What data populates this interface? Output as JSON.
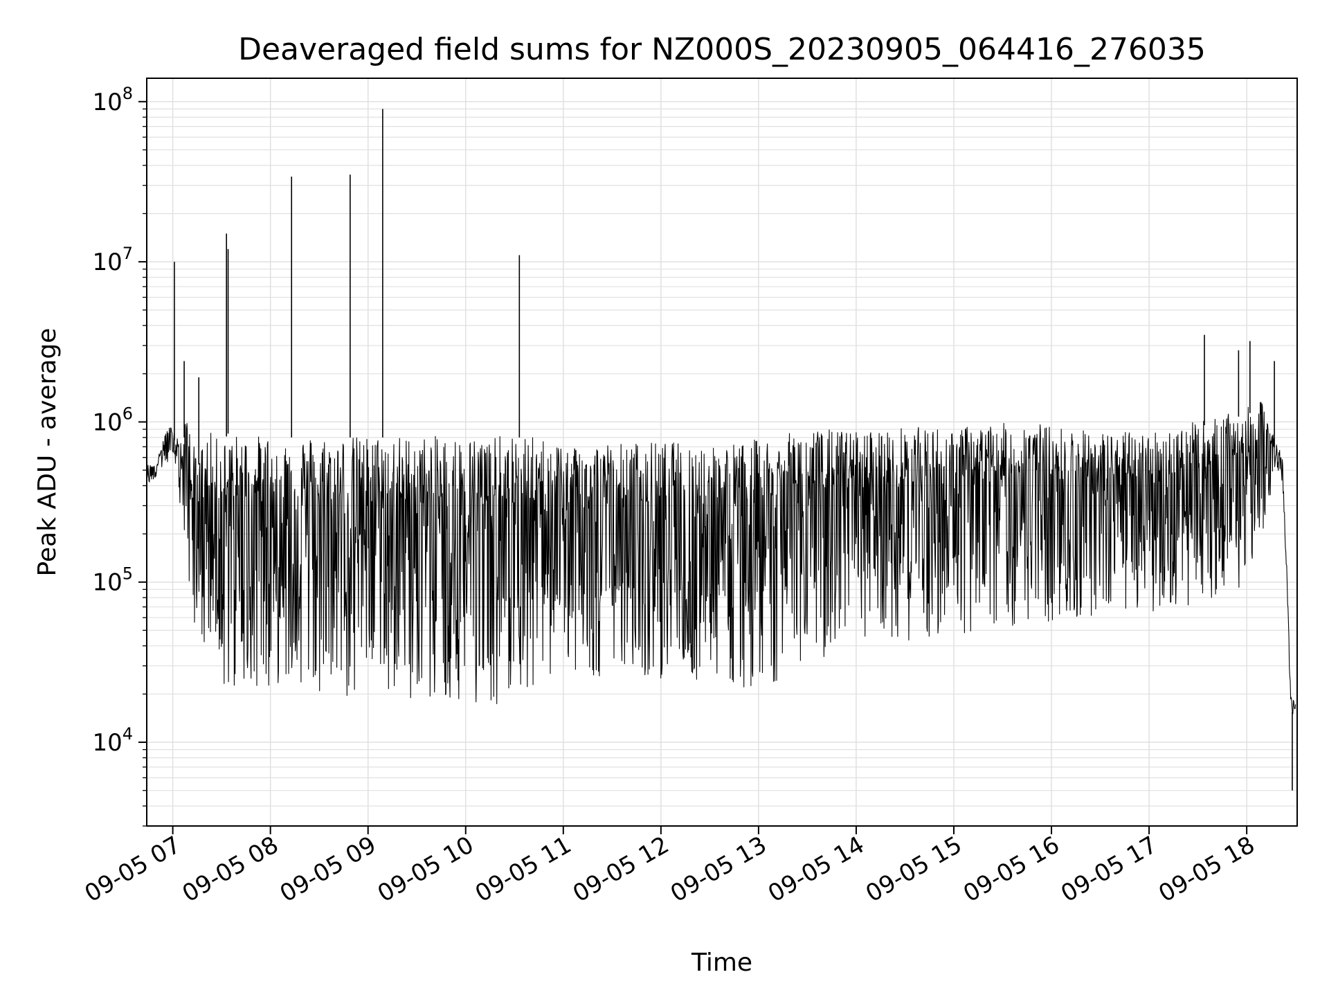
{
  "chart_data": {
    "type": "line",
    "title": "Deaveraged field sums for NZ000S_20230905_064416_276035",
    "xlabel": "Time",
    "ylabel": "Peak ADU - average",
    "yscale": "log",
    "ylim": [
      3000,
      140000000
    ],
    "xlim": [
      "2023-09-05 06:44",
      "2023-09-05 18:31"
    ],
    "grid": true,
    "line_color": "#000000",
    "grid_color": "#e0e0e0",
    "x_ticks": [
      "2023-09-05 07:00",
      "2023-09-05 08:00",
      "2023-09-05 09:00",
      "2023-09-05 10:00",
      "2023-09-05 11:00",
      "2023-09-05 12:00",
      "2023-09-05 13:00",
      "2023-09-05 14:00",
      "2023-09-05 15:00",
      "2023-09-05 16:00",
      "2023-09-05 17:00",
      "2023-09-05 18:00"
    ],
    "x_tick_labels": [
      "09-05 07",
      "09-05 08",
      "09-05 09",
      "09-05 10",
      "09-05 11",
      "09-05 12",
      "09-05 13",
      "09-05 14",
      "09-05 15",
      "09-05 16",
      "09-05 17",
      "09-05 18"
    ],
    "y_ticks": [
      10000,
      100000,
      1000000,
      10000000,
      100000000
    ],
    "y_tick_labels": [
      {
        "base": "10",
        "exp": "4"
      },
      {
        "base": "10",
        "exp": "5"
      },
      {
        "base": "10",
        "exp": "6"
      },
      {
        "base": "10",
        "exp": "7"
      },
      {
        "base": "10",
        "exp": "8"
      }
    ],
    "series": [
      {
        "x": [
          "2023-09-05 06:44",
          "2023-09-05 06:50",
          "2023-09-05 06:55",
          "2023-09-05 07:00",
          "2023-09-05 07:05",
          "2023-09-05 07:10",
          "2023-09-05 07:15",
          "2023-09-05 07:20",
          "2023-09-05 07:25",
          "2023-09-05 07:30",
          "2023-09-05 07:35",
          "2023-09-05 07:40",
          "2023-09-05 07:50",
          "2023-09-05 08:00",
          "2023-09-05 08:12",
          "2023-09-05 08:25",
          "2023-09-05 08:35",
          "2023-09-05 08:45",
          "2023-09-05 08:50",
          "2023-09-05 09:00",
          "2023-09-05 09:10",
          "2023-09-05 09:20",
          "2023-09-05 09:30",
          "2023-09-05 09:45",
          "2023-09-05 10:00",
          "2023-09-05 10:20",
          "2023-09-05 10:35",
          "2023-09-05 10:50",
          "2023-09-05 11:00",
          "2023-09-05 11:30",
          "2023-09-05 12:00",
          "2023-09-05 12:30",
          "2023-09-05 12:45",
          "2023-09-05 13:00",
          "2023-09-05 13:15",
          "2023-09-05 13:30",
          "2023-09-05 14:00",
          "2023-09-05 14:30",
          "2023-09-05 15:00",
          "2023-09-05 15:30",
          "2023-09-05 15:45",
          "2023-09-05 16:00",
          "2023-09-05 16:30",
          "2023-09-05 17:00",
          "2023-09-05 17:20",
          "2023-09-05 17:35",
          "2023-09-05 17:50",
          "2023-09-05 18:00",
          "2023-09-05 18:10",
          "2023-09-05 18:18",
          "2023-09-05 18:22",
          "2023-09-05 18:25",
          "2023-09-05 18:27",
          "2023-09-05 18:30"
        ],
        "y": [
          550000,
          550000,
          900000,
          1000000,
          800000,
          1400000,
          600000,
          1100000,
          1000000,
          900000,
          1100000,
          1000000,
          1000000,
          1000000,
          1000000,
          1000000,
          1000000,
          1000000,
          1000000,
          1000000,
          1000000,
          1000000,
          1000000,
          1000000,
          1000000,
          1000000,
          1000000,
          950000,
          900000,
          900000,
          900000,
          900000,
          900000,
          950000,
          1000000,
          1100000,
          1050000,
          1100000,
          1100000,
          1150000,
          1200000,
          1100000,
          1000000,
          1000000,
          1100000,
          1200000,
          1300000,
          1400000,
          1500000,
          800000,
          600000,
          100000,
          20000,
          18000
        ],
        "envelope_low": [
          400000,
          450000,
          500000,
          500000,
          250000,
          100000,
          40000,
          30000,
          25000,
          22000,
          20000,
          20000,
          22000,
          22000,
          25000,
          22000,
          20000,
          18000,
          18000,
          20000,
          20000,
          20000,
          18000,
          18000,
          18000,
          17000,
          20000,
          25000,
          25000,
          25000,
          25000,
          22000,
          22000,
          22000,
          25000,
          30000,
          35000,
          40000,
          45000,
          50000,
          55000,
          55000,
          60000,
          65000,
          70000,
          70000,
          80000,
          100000,
          200000,
          500000,
          400000,
          80000,
          15000,
          15000
        ]
      }
    ],
    "spikes": [
      {
        "x": "2023-09-05 07:01",
        "y": 10000000
      },
      {
        "x": "2023-09-05 07:33",
        "y": 15000000
      },
      {
        "x": "2023-09-05 07:34",
        "y": 12000000
      },
      {
        "x": "2023-09-05 08:13",
        "y": 34000000
      },
      {
        "x": "2023-09-05 08:49",
        "y": 35000000
      },
      {
        "x": "2023-09-05 09:09",
        "y": 90000000
      },
      {
        "x": "2023-09-05 10:33",
        "y": 11000000
      },
      {
        "x": "2023-09-05 17:34",
        "y": 3500000
      },
      {
        "x": "2023-09-05 17:55",
        "y": 2800000
      },
      {
        "x": "2023-09-05 18:02",
        "y": 3200000
      },
      {
        "x": "2023-09-05 18:17",
        "y": 2400000
      },
      {
        "x": "2023-09-05 07:07",
        "y": 2400000
      },
      {
        "x": "2023-09-05 07:16",
        "y": 1900000
      },
      {
        "x": "2023-09-05 18:28",
        "y": 5000
      }
    ]
  }
}
